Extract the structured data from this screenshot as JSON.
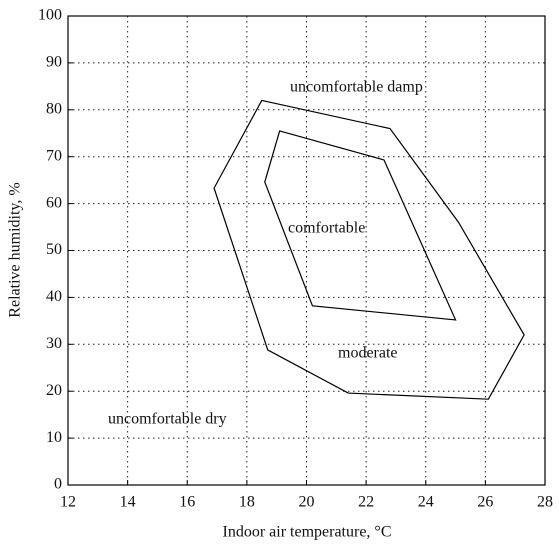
{
  "chart_data": {
    "type": "line",
    "xlabel": "Indoor air temperature, °C",
    "ylabel": "Relative humidity, %",
    "xlim": [
      12,
      28
    ],
    "xticks": [
      12,
      14,
      16,
      18,
      20,
      22,
      24,
      26,
      28
    ],
    "ylim": [
      0,
      100
    ],
    "yticks": [
      0,
      10,
      20,
      30,
      40,
      50,
      60,
      70,
      80,
      90,
      100
    ],
    "grid": true,
    "series": [
      {
        "color": "#000000",
        "closed": true,
        "x": [
          18.5,
          22.8,
          25.1,
          27.3,
          26.1,
          21.4,
          18.7,
          16.9
        ],
        "values": [
          82,
          76,
          56,
          32,
          18.3,
          19.6,
          28.8,
          63.3
        ]
      },
      {
        "color": "#000000",
        "closed": true,
        "x": [
          19.1,
          22.6,
          25.0,
          20.2,
          18.6
        ],
        "values": [
          75.5,
          69.3,
          35.2,
          38.2,
          64.6
        ]
      }
    ],
    "annotations": [
      "uncomfortable damp",
      "comfortable",
      "moderate",
      "uncomfortable dry"
    ]
  }
}
